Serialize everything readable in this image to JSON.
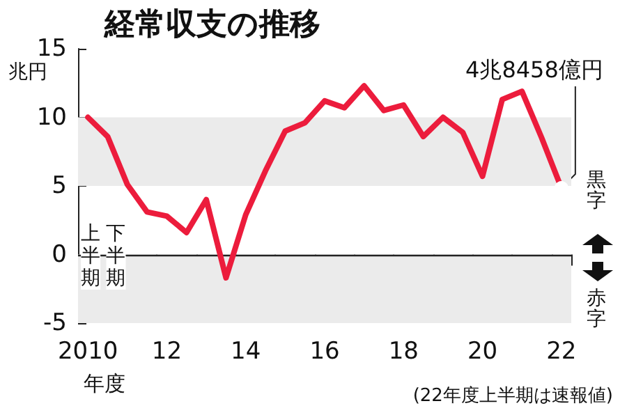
{
  "chart_data": {
    "type": "line",
    "title": "経常収支の推移",
    "ylabel": "兆円",
    "xlabel": "年度",
    "categories": [
      "2010",
      null,
      null,
      null,
      "12",
      null,
      null,
      null,
      "14",
      null,
      null,
      null,
      "16",
      null,
      null,
      null,
      "18",
      null,
      null,
      null,
      "20",
      null,
      null,
      null,
      "22"
    ],
    "series": [
      {
        "color": "#ec1c3c",
        "values": [
          10.0,
          8.6,
          5.1,
          3.1,
          2.8,
          1.6,
          4.0,
          -1.7,
          2.9,
          6.1,
          9.0,
          9.6,
          11.2,
          10.7,
          12.3,
          10.5,
          10.9,
          8.6,
          10.0,
          8.9,
          5.7,
          11.3,
          11.9,
          8.5,
          4.8458
        ]
      }
    ],
    "ylim": [
      -5,
      15
    ],
    "yticks": [
      -5,
      0,
      5,
      10,
      15
    ],
    "bands": [
      {
        "axis": "y",
        "from": 5,
        "to": 10,
        "color": "#ebebeb"
      },
      {
        "axis": "y",
        "from": -5,
        "to": 0,
        "color": "#ebebeb"
      }
    ],
    "ref_lines": [
      {
        "axis": "y",
        "value": 0,
        "color": "#222222"
      }
    ],
    "annotations": [
      {
        "text": "4兆8458億円",
        "x": "22",
        "y": 4.8458
      },
      "上半期",
      "下半期",
      "黒字",
      "赤字",
      "(22年度上半期は速報値)"
    ],
    "marker": "none",
    "line_style": "solid",
    "grid": false
  }
}
